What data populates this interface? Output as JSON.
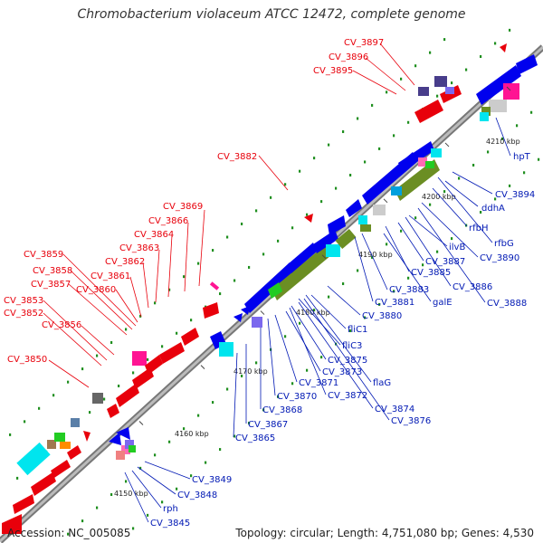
{
  "title": "Chromobacterium violaceum ATCC 12472, complete genome",
  "footer": {
    "accession": "Accession: NC_005085",
    "summary": "Topology: circular; Length: 4,751,080 bp; Genes: 4,530"
  },
  "colors": {
    "backbone": "#9a9a9a",
    "red_label": "#e8000b",
    "blue_label": "#0018b4",
    "gc_dots": "#1f8f1f"
  },
  "ticks": [
    {
      "label": "4150 kbp"
    },
    {
      "label": "4160 kbp"
    },
    {
      "label": "4170 kbp"
    },
    {
      "label": "4180 kbp"
    },
    {
      "label": "4190 kbp"
    },
    {
      "label": "4200 kbp"
    },
    {
      "label": "4210 kbp"
    }
  ],
  "labels_red": [
    {
      "text": "CV_3897"
    },
    {
      "text": "CV_3896"
    },
    {
      "text": "CV_3895"
    },
    {
      "text": "CV_3882"
    },
    {
      "text": "CV_3869"
    },
    {
      "text": "CV_3866"
    },
    {
      "text": "CV_3864"
    },
    {
      "text": "CV_3863"
    },
    {
      "text": "CV_3862"
    },
    {
      "text": "CV_3859"
    },
    {
      "text": "CV_3858"
    },
    {
      "text": "CV_3861"
    },
    {
      "text": "CV_3857"
    },
    {
      "text": "CV_3860"
    },
    {
      "text": "CV_3853"
    },
    {
      "text": "CV_3852"
    },
    {
      "text": "CV_3856"
    },
    {
      "text": "CV_3850"
    }
  ],
  "labels_blue": [
    {
      "text": "hpT"
    },
    {
      "text": "CV_3894"
    },
    {
      "text": "ddhA"
    },
    {
      "text": "rfbH"
    },
    {
      "text": "rfbG"
    },
    {
      "text": "ilvB"
    },
    {
      "text": "CV_3890"
    },
    {
      "text": "CV_3887"
    },
    {
      "text": "CV_3885"
    },
    {
      "text": "CV_3886"
    },
    {
      "text": "CV_3888"
    },
    {
      "text": "CV_3883"
    },
    {
      "text": "CV_3881"
    },
    {
      "text": "galE"
    },
    {
      "text": "CV_3880"
    },
    {
      "text": "fliC1"
    },
    {
      "text": "fliC3"
    },
    {
      "text": "CV_3875"
    },
    {
      "text": "CV_3873"
    },
    {
      "text": "flaG"
    },
    {
      "text": "CV_3871"
    },
    {
      "text": "CV_3872"
    },
    {
      "text": "CV_3870"
    },
    {
      "text": "CV_3874"
    },
    {
      "text": "CV_3868"
    },
    {
      "text": "CV_3876"
    },
    {
      "text": "CV_3867"
    },
    {
      "text": "CV_3865"
    },
    {
      "text": "CV_3849"
    },
    {
      "text": "CV_3848"
    },
    {
      "text": "rph"
    },
    {
      "text": "CV_3845"
    }
  ]
}
